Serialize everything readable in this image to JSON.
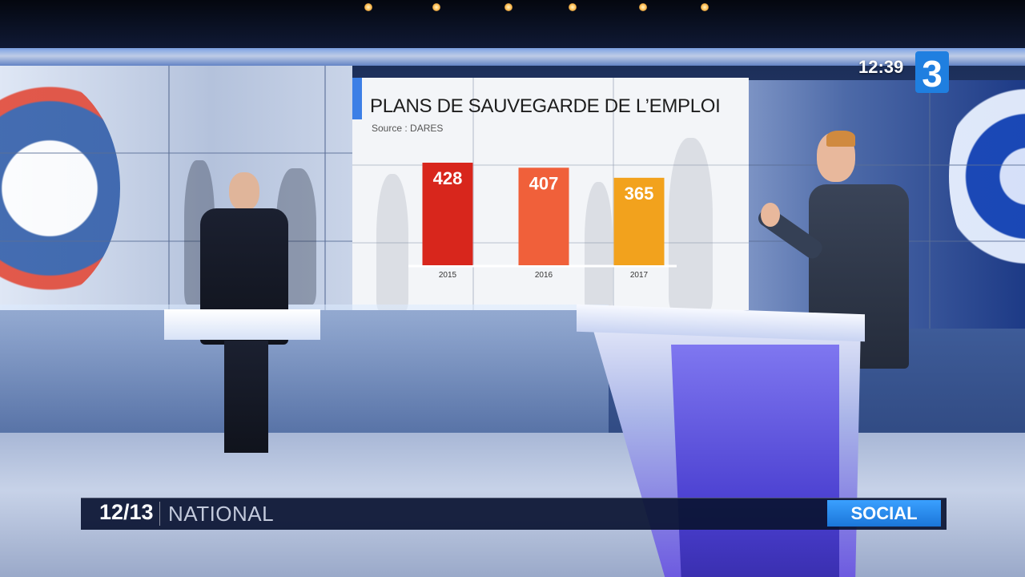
{
  "broadcast": {
    "clock": "12:39",
    "channel_number": "3",
    "show_name": "12/13",
    "region": "NATIONAL",
    "topic_tag": "SOCIAL"
  },
  "colors": {
    "bar_2015": "#d8261c",
    "bar_2016": "#f0603a",
    "bar_2017": "#f2a21d",
    "tag_blue": "#1b76d9",
    "accent_blue": "#3c7fe6"
  },
  "chart_data": {
    "type": "bar",
    "title": "PLANS DE SAUVEGARDE DE L’EMPLOI",
    "subtitle": "Source : DARES",
    "categories": [
      "2015",
      "2016",
      "2017"
    ],
    "values": [
      428,
      407,
      365
    ],
    "data_labels": [
      "428",
      "407",
      "365"
    ],
    "ylim": [
      0,
      428
    ],
    "grid": false,
    "legend": "none"
  }
}
